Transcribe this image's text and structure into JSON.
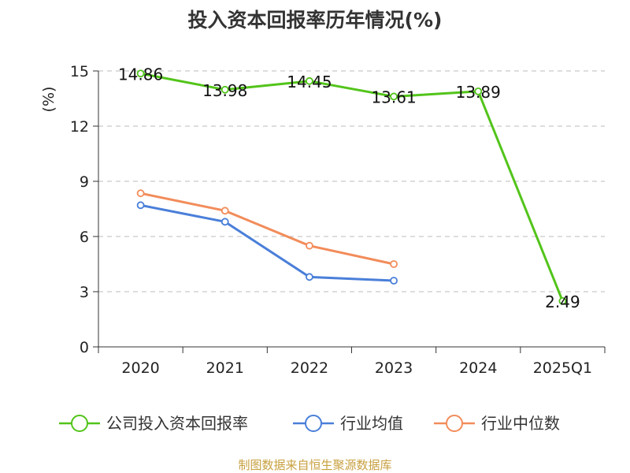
{
  "title": "投入资本回报率历年情况(%)",
  "source": "制图数据来自恒生聚源数据库",
  "colors": {
    "company": "#52c41a",
    "industry_avg": "#4a7fd9",
    "industry_median": "#f28c5a",
    "unit": "#cc0000",
    "grid": "#bbbbbb",
    "axis": "#333333"
  },
  "chart_data": {
    "type": "line",
    "categories": [
      "2020",
      "2021",
      "2022",
      "2023",
      "2024",
      "2025Q1"
    ],
    "ylabel": "(%)",
    "ylim": [
      0,
      15
    ],
    "yticks": [
      "0",
      "3",
      "6",
      "9",
      "12",
      "15"
    ],
    "grid": "horizontal dashed",
    "legend_position": "bottom",
    "series": [
      {
        "name": "公司投入资本回报率",
        "values": [
          14.86,
          13.98,
          14.45,
          13.61,
          13.89,
          2.49
        ],
        "labels": [
          "14.86",
          "13.98",
          "14.45",
          "13.61",
          "13.89",
          "2.49"
        ]
      },
      {
        "name": "行业均值",
        "values": [
          7.7,
          6.8,
          3.8,
          3.6,
          null,
          null
        ]
      },
      {
        "name": "行业中位数",
        "values": [
          8.35,
          7.4,
          5.5,
          4.5,
          null,
          null
        ]
      }
    ]
  }
}
